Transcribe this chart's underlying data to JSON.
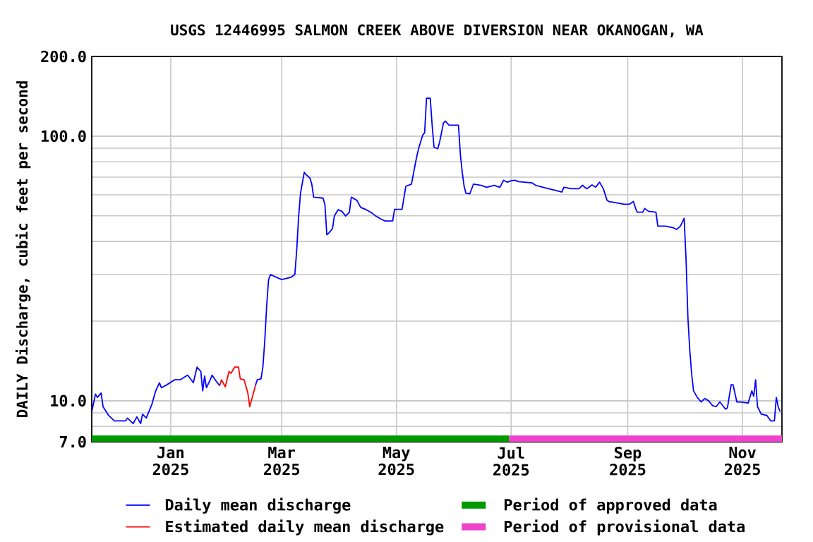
{
  "chart_data": {
    "type": "line",
    "title": "USGS 12446995 SALMON CREEK ABOVE DIVERSION NEAR OKANOGAN, WA",
    "ylabel": "DAILY Discharge, cubic feet per second",
    "log": true,
    "grid": true,
    "legend": "bottom",
    "marker": "none",
    "line_style": "solid",
    "xlim": [
      "2024-11-20",
      "2025-11-22"
    ],
    "xticks": [
      {
        "value": "2025-01-01",
        "label": "Jan 2025"
      },
      {
        "value": "2025-03-01",
        "label": "Mar 2025"
      },
      {
        "value": "2025-05-01",
        "label": "May 2025"
      },
      {
        "value": "2025-07-01",
        "label": "Jul 2025"
      },
      {
        "value": "2025-09-01",
        "label": "Sep 2025"
      },
      {
        "value": "2025-11-01",
        "label": "Nov 2025"
      }
    ],
    "ylim": [
      7,
      200
    ],
    "yticks": [
      {
        "value": 7,
        "label": "7.0"
      },
      {
        "value": 10,
        "label": "10.0"
      },
      {
        "value": 100,
        "label": "100.0"
      },
      {
        "value": 200,
        "label": "200.0"
      }
    ],
    "series": [
      {
        "name": "Daily mean discharge",
        "color": "#0000ff",
        "x": [
          "2024-11-20",
          "2024-11-22",
          "2024-11-23",
          "2024-11-25",
          "2024-11-26",
          "2024-11-29",
          "2024-12-02",
          "2024-12-08",
          "2024-12-09",
          "2024-12-12",
          "2024-12-14",
          "2024-12-16",
          "2024-12-17",
          "2024-12-19",
          "2024-12-22",
          "2024-12-24",
          "2024-12-26",
          "2024-12-27",
          "2024-12-30",
          "2025-01-03",
          "2025-01-06",
          "2025-01-10",
          "2025-01-13",
          "2025-01-15",
          "2025-01-17",
          "2025-01-18",
          "2025-01-19",
          "2025-01-20",
          "2025-01-22",
          "2025-01-23",
          "2025-01-25",
          "2025-01-27",
          "2025-02-05",
          "2025-02-15",
          "2025-02-16",
          "2025-02-18",
          "2025-02-19",
          "2025-02-20",
          "2025-02-21",
          "2025-02-22",
          "2025-02-23",
          "2025-02-27",
          "2025-03-01",
          "2025-03-06",
          "2025-03-08",
          "2025-03-09",
          "2025-03-10",
          "2025-03-11",
          "2025-03-13",
          "2025-03-14",
          "2025-03-16",
          "2025-03-17",
          "2025-03-18",
          "2025-03-23",
          "2025-03-24",
          "2025-03-25",
          "2025-03-26",
          "2025-03-28",
          "2025-03-29",
          "2025-03-31",
          "2025-04-02",
          "2025-04-04",
          "2025-04-06",
          "2025-04-07",
          "2025-04-10",
          "2025-04-12",
          "2025-04-15",
          "2025-04-18",
          "2025-04-20",
          "2025-04-23",
          "2025-04-25",
          "2025-04-29",
          "2025-04-30",
          "2025-05-04",
          "2025-05-06",
          "2025-05-09",
          "2025-05-11",
          "2025-05-12",
          "2025-05-13",
          "2025-05-15",
          "2025-05-16",
          "2025-05-17",
          "2025-05-19",
          "2025-05-20",
          "2025-05-21",
          "2025-05-23",
          "2025-05-24",
          "2025-05-26",
          "2025-05-27",
          "2025-05-29",
          "2025-06-03",
          "2025-06-04",
          "2025-06-05",
          "2025-06-06",
          "2025-06-07",
          "2025-06-09",
          "2025-06-11",
          "2025-06-15",
          "2025-06-18",
          "2025-06-22",
          "2025-06-25",
          "2025-06-27",
          "2025-06-29",
          "2025-07-01",
          "2025-07-03",
          "2025-07-05",
          "2025-07-08",
          "2025-07-12",
          "2025-07-14",
          "2025-07-19",
          "2025-07-24",
          "2025-07-28",
          "2025-07-29",
          "2025-08-02",
          "2025-08-06",
          "2025-08-08",
          "2025-08-10",
          "2025-08-11",
          "2025-08-13",
          "2025-08-15",
          "2025-08-17",
          "2025-08-19",
          "2025-08-21",
          "2025-08-22",
          "2025-08-26",
          "2025-08-30",
          "2025-09-02",
          "2025-09-04",
          "2025-09-05",
          "2025-09-06",
          "2025-09-09",
          "2025-09-10",
          "2025-09-12",
          "2025-09-16",
          "2025-09-17",
          "2025-09-21",
          "2025-09-25",
          "2025-09-27",
          "2025-09-29",
          "2025-10-01",
          "2025-10-02",
          "2025-10-03",
          "2025-10-04",
          "2025-10-05",
          "2025-10-06",
          "2025-10-08",
          "2025-10-10",
          "2025-10-12",
          "2025-10-14",
          "2025-10-16",
          "2025-10-18",
          "2025-10-20",
          "2025-10-23",
          "2025-10-24",
          "2025-10-26",
          "2025-10-27",
          "2025-10-29",
          "2025-10-31",
          "2025-11-04",
          "2025-11-06",
          "2025-11-07",
          "2025-11-08",
          "2025-11-09",
          "2025-11-11",
          "2025-11-14",
          "2025-11-16",
          "2025-11-18",
          "2025-11-19",
          "2025-11-20",
          "2025-11-21"
        ],
        "values": [
          9.1,
          10.6,
          10.3,
          10.7,
          9.5,
          8.8,
          8.4,
          8.4,
          8.6,
          8.2,
          8.7,
          8.2,
          8.9,
          8.6,
          9.7,
          10.9,
          11.7,
          11.2,
          11.5,
          12.0,
          12.0,
          12.5,
          11.7,
          13.4,
          12.9,
          10.9,
          12.4,
          11.2,
          12.0,
          12.5,
          11.9,
          11.4,
          null,
          11.4,
          12.0,
          12.1,
          13.4,
          16.8,
          22.8,
          28.6,
          30.0,
          29.1,
          28.7,
          29.3,
          30.0,
          37.2,
          49.5,
          60.8,
          73.0,
          71.5,
          69.5,
          65.9,
          58.8,
          58.3,
          54.9,
          42.4,
          43.0,
          44.7,
          49.9,
          52.7,
          52.0,
          49.9,
          51.6,
          58.8,
          57.2,
          53.8,
          52.7,
          51.2,
          49.9,
          48.5,
          47.8,
          47.8,
          52.9,
          52.9,
          64.6,
          65.9,
          78.3,
          84.9,
          90.7,
          101,
          103,
          139,
          139,
          110,
          90.7,
          89.6,
          95.2,
          112,
          114,
          110,
          110,
          85.3,
          73.0,
          64.6,
          60.8,
          60.5,
          65.9,
          65.2,
          64.1,
          65.2,
          64.1,
          68.1,
          67.0,
          67.8,
          68.1,
          67.3,
          67.0,
          66.6,
          65.2,
          63.8,
          62.5,
          61.5,
          64.1,
          63.3,
          63.3,
          65.2,
          63.3,
          63.8,
          65.4,
          64.1,
          67.0,
          63.3,
          57.2,
          56.6,
          56.0,
          55.3,
          55.3,
          56.6,
          53.8,
          51.6,
          51.6,
          53.3,
          52.0,
          51.6,
          45.7,
          45.7,
          45.1,
          44.4,
          45.7,
          48.9,
          34.3,
          20.6,
          15.5,
          12.6,
          10.9,
          10.3,
          9.9,
          10.2,
          10.0,
          9.6,
          9.5,
          9.9,
          9.3,
          9.4,
          11.5,
          11.5,
          9.9,
          9.9,
          9.8,
          10.9,
          10.4,
          12.0,
          9.5,
          8.9,
          8.8,
          8.4,
          8.4,
          10.3,
          9.5,
          9.1
        ]
      },
      {
        "name": "Estimated daily mean discharge",
        "color": "#ff0000",
        "x": [
          "2025-01-27",
          "2025-01-28",
          "2025-01-30",
          "2025-02-01",
          "2025-02-02",
          "2025-02-04",
          "2025-02-06",
          "2025-02-07",
          "2025-02-09",
          "2025-02-11",
          "2025-02-12",
          "2025-02-14",
          "2025-02-15"
        ],
        "values": [
          11.4,
          12.0,
          11.3,
          12.9,
          12.7,
          13.4,
          13.4,
          12.1,
          12.0,
          10.7,
          9.5,
          10.7,
          11.4
        ]
      },
      {
        "name": "Period of approved data",
        "color": "#009900",
        "type": "line",
        "x": [
          "2024-11-20",
          "2025-06-30"
        ],
        "values": [
          7,
          7
        ]
      },
      {
        "name": "Period of provisional data",
        "color": "#ee44cc",
        "type": "line",
        "x": [
          "2025-06-30",
          "2025-11-22"
        ],
        "values": [
          7,
          7
        ]
      }
    ]
  }
}
